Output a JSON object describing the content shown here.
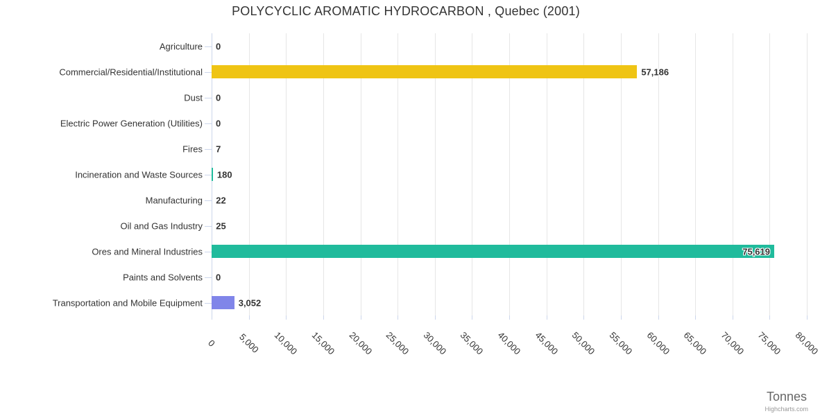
{
  "chart_data": {
    "type": "bar",
    "title": "POLYCYCLIC AROMATIC HYDROCARBON , Quebec (2001)",
    "xlabel": "Tonnes",
    "categories": [
      "Agriculture",
      "Commercial/Residential/Institutional",
      "Dust",
      "Electric Power Generation (Utilities)",
      "Fires",
      "Incineration and Waste Sources",
      "Manufacturing",
      "Oil and Gas Industry",
      "Ores and Mineral Industries",
      "Paints and Solvents",
      "Transportation and Mobile Equipment"
    ],
    "values": [
      0,
      57186,
      0,
      0,
      7,
      180,
      22,
      25,
      75619,
      0,
      3052
    ],
    "value_labels": [
      "0",
      "57,186",
      "0",
      "0",
      "7",
      "180",
      "22",
      "25",
      "75,619",
      "0",
      "3,052"
    ],
    "bar_colors": [
      null,
      "#efc414",
      null,
      null,
      null,
      "#20bb9c",
      null,
      null,
      "#20bb9c",
      null,
      "#8085e9"
    ],
    "label_inside": [
      false,
      false,
      false,
      false,
      false,
      false,
      false,
      false,
      true,
      false,
      false
    ],
    "axis": {
      "min": 0,
      "max": 80000,
      "tick_interval": 5000,
      "tick_labels": [
        "0",
        "5,000",
        "10,000",
        "15,000",
        "20,000",
        "25,000",
        "30,000",
        "35,000",
        "40,000",
        "45,000",
        "50,000",
        "55,000",
        "60,000",
        "65,000",
        "70,000",
        "75,000",
        "80,000"
      ]
    },
    "legend": false,
    "grid": true
  },
  "credits": "Highcharts.com",
  "colors": {
    "bar_yellow": "#efc414",
    "bar_teal": "#20bb9c",
    "bar_purple": "#8085e9",
    "grid": "#e6e6e6",
    "axis_line": "#ccd6eb",
    "text": "#333333",
    "axis_title_text": "#666666",
    "credits_text": "#999999"
  }
}
